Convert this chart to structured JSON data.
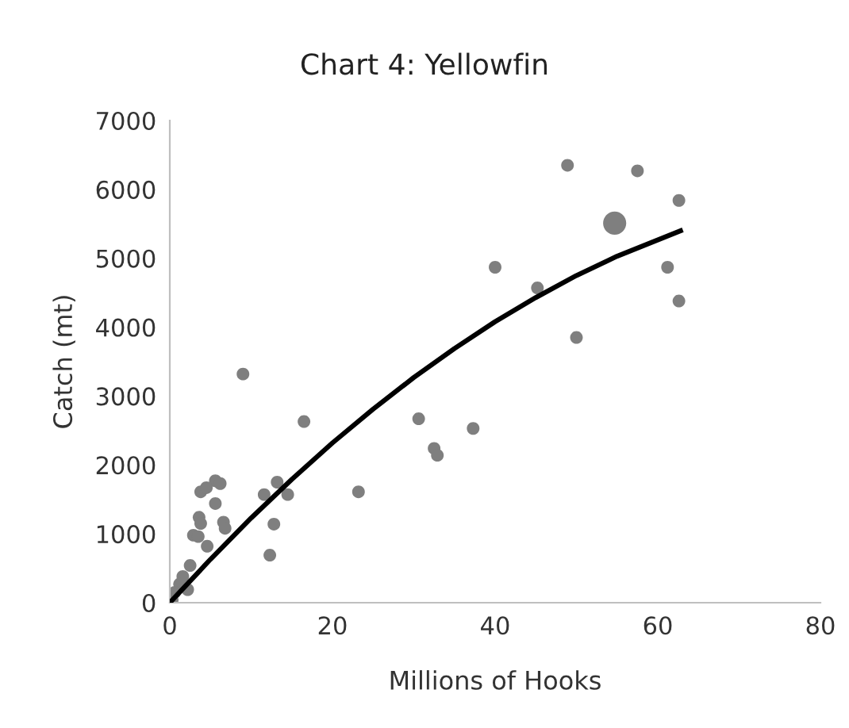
{
  "chart_data": {
    "type": "bubble",
    "title": "Chart 4: Yellowfin",
    "xlabel": "Millions of Hooks",
    "ylabel": "Catch (mt)",
    "xlim": [
      0,
      80
    ],
    "xticks": [
      0,
      20,
      40,
      60,
      80
    ],
    "ylim": [
      0,
      7000
    ],
    "yticks": [
      0,
      1000,
      2000,
      3000,
      4000,
      5000,
      6000,
      7000
    ],
    "grid": false,
    "legend": false,
    "series": [
      {
        "color": "#7f7f7f",
        "x": [
          48.9,
          57.5,
          62.6,
          54.7,
          61.2,
          62.6,
          40.0,
          45.2,
          50.0,
          30.6,
          37.3,
          32.5,
          32.9,
          23.2,
          9.0,
          16.5,
          5.6,
          6.2,
          3.8,
          4.5,
          5.6,
          3.6,
          3.8,
          6.6,
          6.8,
          2.9,
          3.5,
          4.6,
          11.6,
          13.2,
          14.5,
          12.8,
          12.3,
          2.5,
          1.6,
          1.2,
          0.6,
          2.2,
          0.3
        ],
        "values": [
          6350,
          6270,
          5840,
          5510,
          4870,
          4380,
          4870,
          4570,
          3850,
          2670,
          2530,
          2240,
          2140,
          1610,
          3320,
          2630,
          1770,
          1730,
          1610,
          1670,
          1440,
          1240,
          1150,
          1170,
          1080,
          980,
          960,
          820,
          1570,
          1750,
          1570,
          1140,
          690,
          540,
          380,
          270,
          150,
          190,
          40
        ],
        "sizes": [
          0.3,
          0.3,
          0.3,
          1,
          0.3,
          0.3,
          0.3,
          0.3,
          0.3,
          0.3,
          0.3,
          0.3,
          0.3,
          0.3,
          0.3,
          0.3,
          0.3,
          0.3,
          0.3,
          0.3,
          0.3,
          0.3,
          0.3,
          0.3,
          0.3,
          0.3,
          0.3,
          0.3,
          0.3,
          0.3,
          0.3,
          0.3,
          0.3,
          0.3,
          0.3,
          0.3,
          0.3,
          0.3,
          0.3
        ]
      },
      {
        "type": "line",
        "color": "#000000",
        "x": [
          0,
          5,
          10,
          15,
          20,
          25,
          30,
          35,
          40,
          45,
          50,
          55,
          62.8
        ],
        "values": [
          0,
          630,
          1230,
          1790,
          2320,
          2810,
          3270,
          3690,
          4080,
          4430,
          4750,
          5030,
          5400
        ]
      }
    ]
  }
}
